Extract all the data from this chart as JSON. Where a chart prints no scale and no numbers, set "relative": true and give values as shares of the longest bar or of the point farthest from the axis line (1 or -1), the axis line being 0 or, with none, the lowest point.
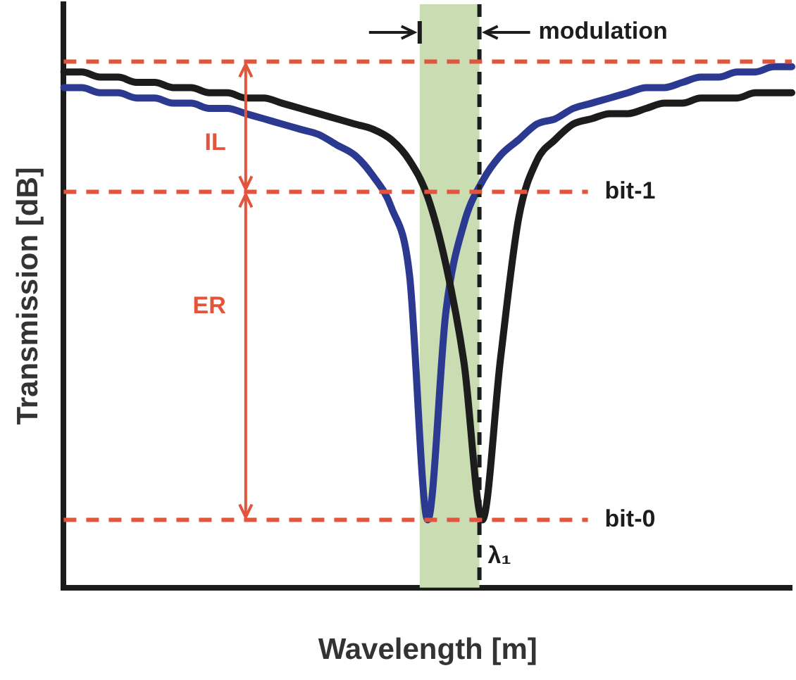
{
  "chart_data": {
    "type": "line",
    "relative": true,
    "xlabel": "Wavelength [m]",
    "ylabel": "Transmission [dB]",
    "categories": [
      null,
      null,
      null,
      null,
      null,
      null,
      null,
      null,
      null,
      null,
      null,
      null,
      null,
      null,
      null,
      null,
      null,
      null,
      null,
      null,
      null,
      null,
      null,
      null,
      null,
      null,
      null,
      null,
      null,
      null,
      null,
      null,
      null,
      null,
      null,
      null,
      null,
      null,
      null,
      null,
      null
    ],
    "series": [
      {
        "color": "#1c1c1c",
        "values": [
          0.99,
          0.99,
          0.98,
          0.98,
          0.97,
          0.97,
          0.96,
          0.96,
          0.95,
          0.95,
          0.94,
          0.94,
          0.93,
          0.92,
          0.91,
          0.9,
          0.89,
          0.88,
          0.86,
          0.82,
          0.75,
          0.62,
          0.43,
          0.13,
          0.44,
          0.71,
          0.82,
          0.86,
          0.89,
          0.9,
          0.91,
          0.91,
          0.92,
          0.93,
          0.93,
          0.94,
          0.94,
          0.94,
          0.95,
          0.95,
          0.95
        ]
      },
      {
        "color": "#2b3990",
        "values": [
          0.96,
          0.96,
          0.95,
          0.95,
          0.94,
          0.94,
          0.93,
          0.93,
          0.92,
          0.92,
          0.91,
          0.9,
          0.89,
          0.88,
          0.87,
          0.85,
          0.83,
          0.79,
          0.73,
          0.6,
          0.13,
          0.53,
          0.7,
          0.78,
          0.83,
          0.86,
          0.89,
          0.9,
          0.92,
          0.93,
          0.94,
          0.95,
          0.96,
          0.96,
          0.97,
          0.98,
          0.98,
          0.99,
          0.99,
          1.0,
          1.0
        ]
      }
    ],
    "ref_lines": [
      {
        "axis": "y",
        "value": 1.01,
        "label": null,
        "color": "#e2553c",
        "line_style": "dashed"
      },
      {
        "axis": "y",
        "value": 0.76,
        "label": "bit-1",
        "color": "#e2553c",
        "line_style": "dashed"
      },
      {
        "axis": "y",
        "value": 0.13,
        "label": "bit-0",
        "color": "#e2553c",
        "line_style": "dashed"
      }
    ],
    "annotations": [
      "IL",
      "ER",
      "modulation",
      "λ₁"
    ],
    "grid": false,
    "legend": false,
    "marker": "none",
    "line_style": "solid"
  }
}
